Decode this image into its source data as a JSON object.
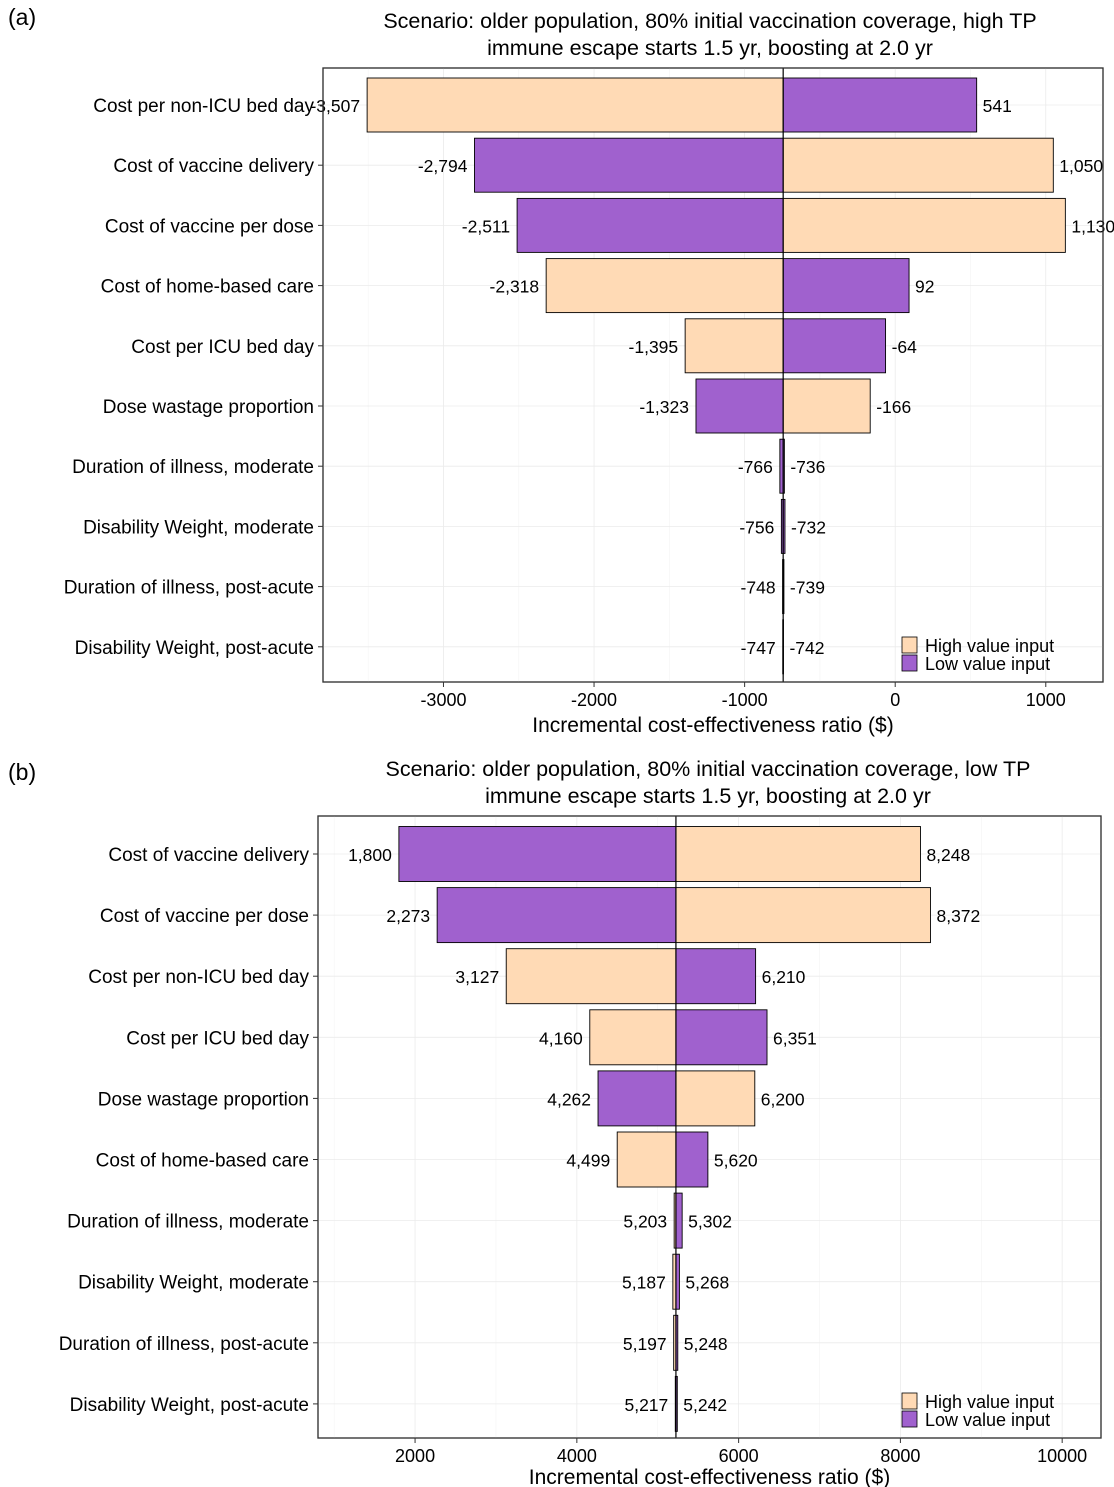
{
  "colors": {
    "high": "#FFDAB5",
    "low": "#A061CE"
  },
  "chart_data": [
    {
      "type": "bar",
      "orientation": "horizontal tornado",
      "panel_label": "(a)",
      "title": "Scenario: older population, 80% initial vaccination coverage, high TP",
      "subtitle": "immune escape starts 1.5 yr, boosting at 2.0 yr",
      "xlabel": "Incremental cost-effectiveness ratio ($)",
      "ylabel": "",
      "xlim": [
        -3800,
        1380
      ],
      "xticks": [
        -3000,
        -2000,
        -1000,
        0,
        1000
      ],
      "xtick_labels": [
        "-3000",
        "-2000",
        "-1000",
        "0",
        "1000"
      ],
      "base_value": -744,
      "legend": {
        "position": "bottom-right",
        "entries": [
          "High value input",
          "Low value input"
        ]
      },
      "rows": [
        {
          "label": "Cost per non-ICU bed day",
          "left_value": -3507,
          "left_label": "-3,507",
          "left_input": "high",
          "right_value": 541,
          "right_label": "541",
          "right_input": "low"
        },
        {
          "label": "Cost of vaccine delivery",
          "left_value": -2794,
          "left_label": "-2,794",
          "left_input": "low",
          "right_value": 1050,
          "right_label": "1,050",
          "right_input": "high"
        },
        {
          "label": "Cost of vaccine per dose",
          "left_value": -2511,
          "left_label": "-2,511",
          "left_input": "low",
          "right_value": 1130,
          "right_label": "1,130",
          "right_input": "high"
        },
        {
          "label": "Cost of home-based care",
          "left_value": -2318,
          "left_label": "-2,318",
          "left_input": "high",
          "right_value": 92,
          "right_label": "92",
          "right_input": "low"
        },
        {
          "label": "Cost per ICU bed day",
          "left_value": -1395,
          "left_label": "-1,395",
          "left_input": "high",
          "right_value": -64,
          "right_label": "-64",
          "right_input": "low"
        },
        {
          "label": "Dose wastage proportion",
          "left_value": -1323,
          "left_label": "-1,323",
          "left_input": "low",
          "right_value": -166,
          "right_label": "-166",
          "right_input": "high"
        },
        {
          "label": "Duration of illness, moderate",
          "left_value": -766,
          "left_label": "-766",
          "left_input": "low",
          "right_value": -736,
          "right_label": "-736",
          "right_input": "low"
        },
        {
          "label": "Disability Weight, moderate",
          "left_value": -756,
          "left_label": "-756",
          "left_input": "low",
          "right_value": -732,
          "right_label": "-732",
          "right_input": "low"
        },
        {
          "label": "Duration of illness, post-acute",
          "left_value": -748,
          "left_label": "-748",
          "left_input": "low",
          "right_value": -739,
          "right_label": "-739",
          "right_input": "low"
        },
        {
          "label": "Disability Weight, post-acute",
          "left_value": -747,
          "left_label": "-747",
          "left_input": "low",
          "right_value": -742,
          "right_label": "-742",
          "right_input": "low"
        }
      ]
    },
    {
      "type": "bar",
      "orientation": "horizontal tornado",
      "panel_label": "(b)",
      "title": "Scenario: older population, 80% initial vaccination coverage, low TP",
      "subtitle": "immune escape starts 1.5 yr, boosting at 2.0 yr",
      "xlabel": "Incremental cost-effectiveness ratio ($)",
      "ylabel": "",
      "xlim": [
        800,
        10480
      ],
      "xticks": [
        2000,
        4000,
        6000,
        8000,
        10000
      ],
      "xtick_labels": [
        "2000",
        "4000",
        "6000",
        "8000",
        "10000"
      ],
      "base_value": 5225,
      "legend": {
        "position": "bottom-right",
        "entries": [
          "High value input",
          "Low value input"
        ]
      },
      "rows": [
        {
          "label": "Cost of vaccine delivery",
          "left_value": 1800,
          "left_label": "1,800",
          "left_input": "low",
          "right_value": 8248,
          "right_label": "8,248",
          "right_input": "high"
        },
        {
          "label": "Cost of vaccine per dose",
          "left_value": 2273,
          "left_label": "2,273",
          "left_input": "low",
          "right_value": 8372,
          "right_label": "8,372",
          "right_input": "high"
        },
        {
          "label": "Cost per non-ICU bed day",
          "left_value": 3127,
          "left_label": "3,127",
          "left_input": "high",
          "right_value": 6210,
          "right_label": "6,210",
          "right_input": "low"
        },
        {
          "label": "Cost per ICU bed day",
          "left_value": 4160,
          "left_label": "4,160",
          "left_input": "high",
          "right_value": 6351,
          "right_label": "6,351",
          "right_input": "low"
        },
        {
          "label": "Dose wastage proportion",
          "left_value": 4262,
          "left_label": "4,262",
          "left_input": "low",
          "right_value": 6200,
          "right_label": "6,200",
          "right_input": "high"
        },
        {
          "label": "Cost of home-based care",
          "left_value": 4499,
          "left_label": "4,499",
          "left_input": "high",
          "right_value": 5620,
          "right_label": "5,620",
          "right_input": "low"
        },
        {
          "label": "Duration of illness, moderate",
          "left_value": 5203,
          "left_label": "5,203",
          "left_input": "high",
          "right_value": 5302,
          "right_label": "5,302",
          "right_input": "low"
        },
        {
          "label": "Disability Weight, moderate",
          "left_value": 5187,
          "left_label": "5,187",
          "left_input": "high",
          "right_value": 5268,
          "right_label": "5,268",
          "right_input": "low"
        },
        {
          "label": "Duration of illness, post-acute",
          "left_value": 5197,
          "left_label": "5,197",
          "left_input": "high",
          "right_value": 5248,
          "right_label": "5,248",
          "right_input": "low"
        },
        {
          "label": "Disability Weight, post-acute",
          "left_value": 5217,
          "left_label": "5,217",
          "left_input": "low",
          "right_value": 5242,
          "right_label": "5,242",
          "right_input": "low"
        }
      ]
    }
  ]
}
